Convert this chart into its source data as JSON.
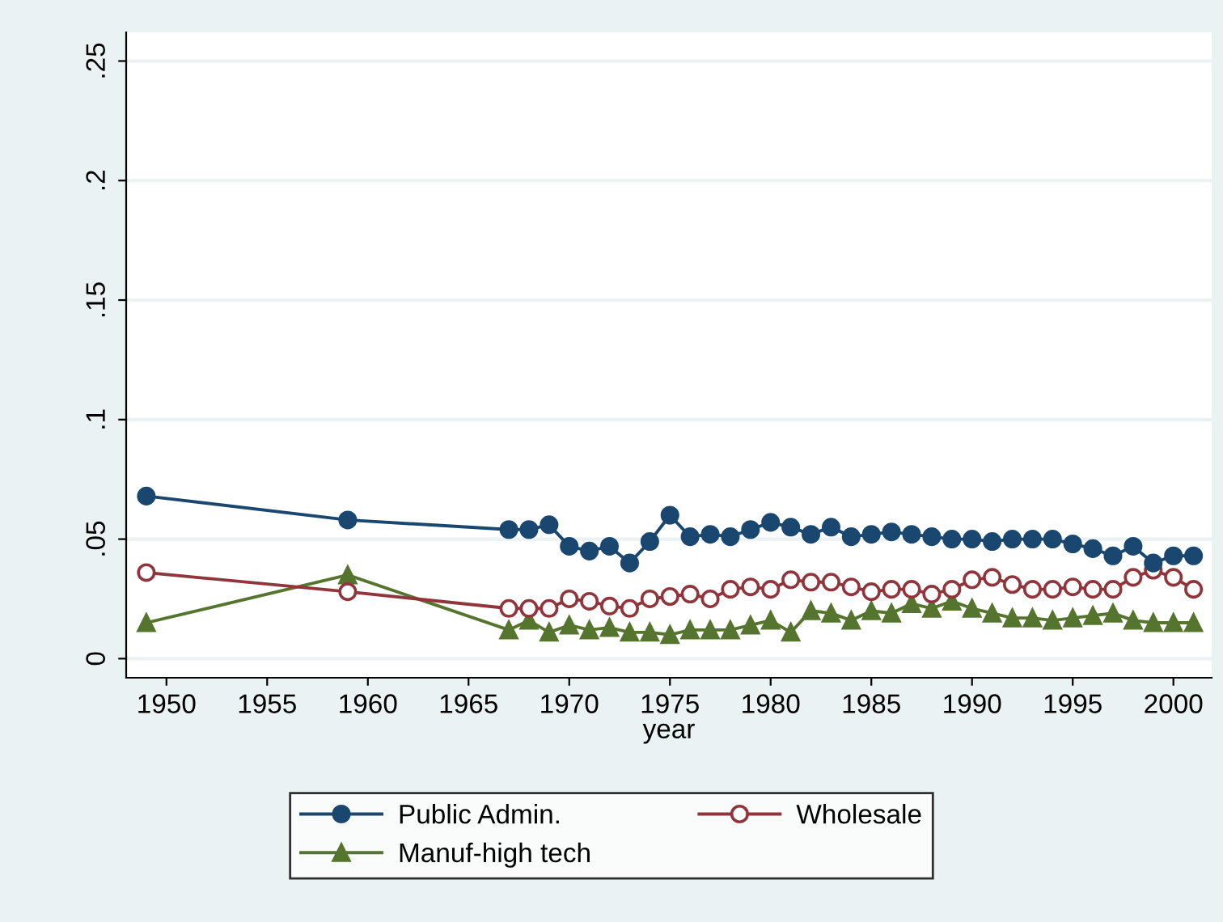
{
  "chart_data": {
    "type": "line",
    "xlabel": "year",
    "x": [
      1949,
      1959,
      1967,
      1968,
      1969,
      1970,
      1971,
      1972,
      1973,
      1974,
      1975,
      1976,
      1977,
      1978,
      1979,
      1980,
      1981,
      1982,
      1983,
      1984,
      1985,
      1986,
      1987,
      1988,
      1989,
      1990,
      1991,
      1992,
      1993,
      1994,
      1995,
      1996,
      1997,
      1998,
      1999,
      2000,
      2001
    ],
    "series": [
      {
        "name": "Public Admin.",
        "color": "#1a476f",
        "marker": "circle",
        "values": [
          0.068,
          0.058,
          0.054,
          0.054,
          0.056,
          0.047,
          0.045,
          0.047,
          0.04,
          0.049,
          0.06,
          0.051,
          0.052,
          0.051,
          0.054,
          0.057,
          0.055,
          0.052,
          0.055,
          0.051,
          0.052,
          0.053,
          0.052,
          0.051,
          0.05,
          0.05,
          0.049,
          0.05,
          0.05,
          0.05,
          0.048,
          0.046,
          0.043,
          0.047,
          0.04,
          0.043,
          0.043
        ]
      },
      {
        "name": "Wholesale",
        "color": "#90353b",
        "marker": "hollow circle",
        "values": [
          0.036,
          0.028,
          0.021,
          0.021,
          0.021,
          0.025,
          0.024,
          0.022,
          0.021,
          0.025,
          0.026,
          0.027,
          0.025,
          0.029,
          0.03,
          0.029,
          0.033,
          0.032,
          0.032,
          0.03,
          0.028,
          0.029,
          0.029,
          0.027,
          0.029,
          0.033,
          0.034,
          0.031,
          0.029,
          0.029,
          0.03,
          0.029,
          0.029,
          0.034,
          0.037,
          0.034,
          0.029
        ]
      },
      {
        "name": "Manuf-high tech",
        "color": "#55752f",
        "marker": "triangle",
        "values": [
          0.015,
          0.035,
          0.012,
          0.016,
          0.011,
          0.014,
          0.012,
          0.013,
          0.011,
          0.011,
          0.01,
          0.012,
          0.012,
          0.012,
          0.014,
          0.016,
          0.011,
          0.02,
          0.019,
          0.016,
          0.02,
          0.019,
          0.023,
          0.021,
          0.024,
          0.021,
          0.019,
          0.017,
          0.017,
          0.016,
          0.017,
          0.018,
          0.019,
          0.016,
          0.015,
          0.015,
          0.015
        ]
      }
    ],
    "xlim": [
      1948,
      2001.9
    ],
    "xticks": [
      1950,
      1955,
      1960,
      1965,
      1970,
      1975,
      1980,
      1985,
      1990,
      1995,
      2000
    ],
    "ylim": [
      -0.008,
      0.262
    ],
    "yticks": [
      {
        "value": 0,
        "label": "0"
      },
      {
        "value": 0.05,
        "label": ".05"
      },
      {
        "value": 0.1,
        "label": ".1"
      },
      {
        "value": 0.15,
        "label": ".15"
      },
      {
        "value": 0.2,
        "label": ".2"
      },
      {
        "value": 0.25,
        "label": ".25"
      }
    ],
    "grid": "y",
    "legend": "bottom",
    "line_style": "solid"
  }
}
